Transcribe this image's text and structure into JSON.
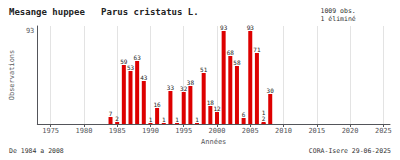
{
  "chart_data": {
    "type": "bar",
    "title": "Mesange huppee   Parus cristatus L.",
    "subtitle": "1009 obs.\n1 éliminé",
    "annotations": [
      "De 1984 a 2008",
      "CORA-Isere 29-06-2025"
    ],
    "xlabel": "Années",
    "ylabel": "Observations",
    "x": [
      1984,
      1985,
      1986,
      1987,
      1988,
      1989,
      1990,
      1991,
      1992,
      1993,
      1994,
      1995,
      1996,
      1997,
      1998,
      1999,
      2000,
      2001,
      2002,
      2003,
      2004,
      2005,
      2006,
      2007,
      2008,
      2007
    ],
    "values": [
      7,
      2,
      59,
      53,
      63,
      43,
      1,
      16,
      1,
      33,
      1,
      32,
      38,
      1,
      51,
      18,
      12,
      93,
      68,
      58,
      6,
      93,
      71,
      2,
      30,
      1
    ],
    "color": "#dd0000",
    "xlim": [
      1973,
      2026
    ],
    "xticks": [
      1975,
      1980,
      1985,
      1990,
      1995,
      2000,
      2005,
      2010,
      2015,
      2020,
      2025
    ],
    "ylim": [
      0,
      98
    ],
    "yticks": [
      93
    ],
    "grid": true,
    "data_labels": true
  }
}
